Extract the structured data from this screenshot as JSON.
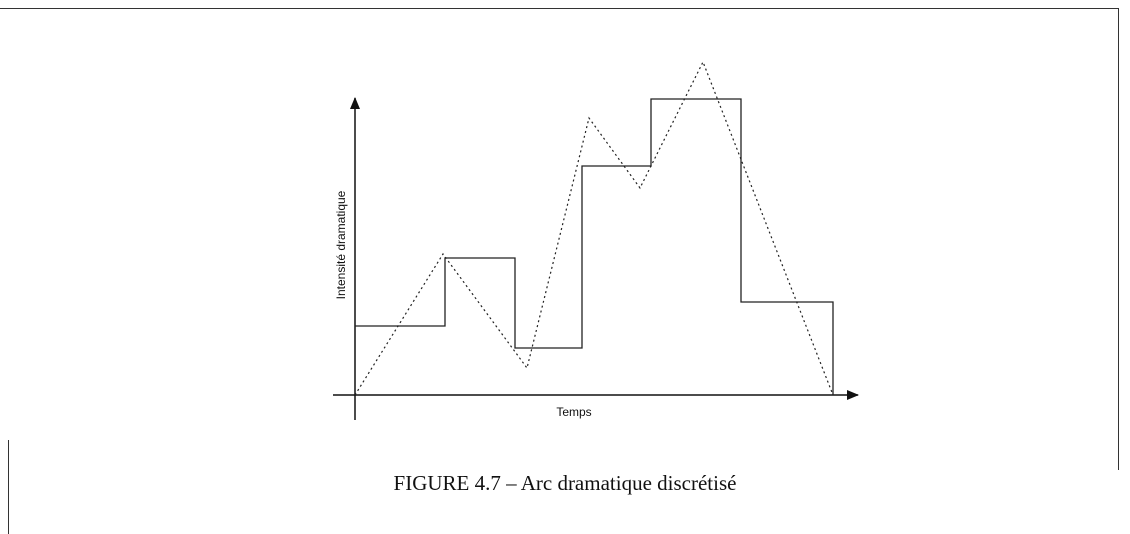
{
  "figure": {
    "y_axis_label": "Intensité dramatique",
    "x_axis_label": "Temps",
    "caption": "FIGURE 4.7 – Arc dramatique discrétisé"
  }
}
